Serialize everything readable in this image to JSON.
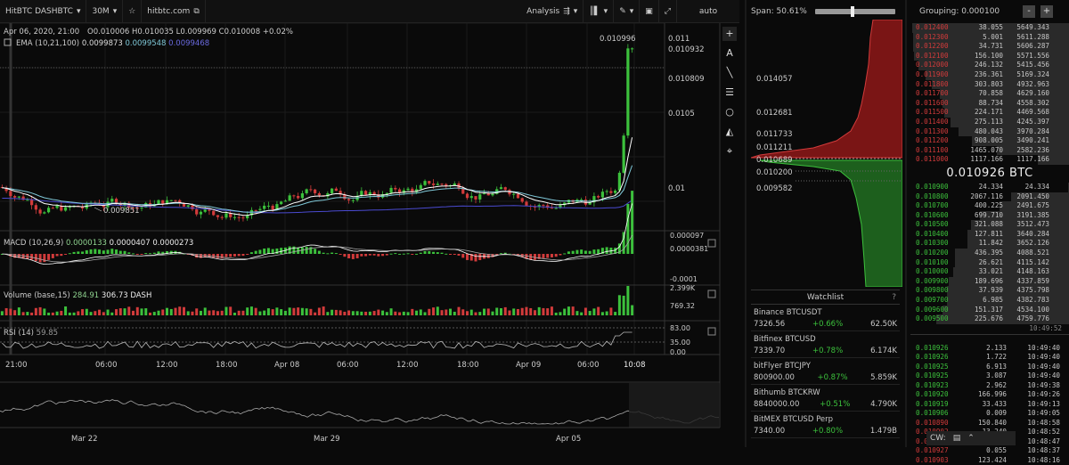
{
  "topbar": {
    "symbol": "HitBTC DASHBTC",
    "interval": "30M",
    "site": "hitbtc.com",
    "analysis": "Analysis",
    "auto": "auto"
  },
  "legend": {
    "date": "Apr 06, 2020, 21:00",
    "o": "0.010006",
    "h": "0.010035",
    "l": "0.009969",
    "c": "0.010008",
    "chg": "+0.02%",
    "ema_label": "EMA (10,21,100)",
    "ema1": "0.0099873",
    "ema2": "0.0099548",
    "ema3": "0.0099468"
  },
  "price_axis": {
    "labels": [
      "0.011",
      "0.010932",
      "0.010809",
      "0.0105",
      "0.01"
    ],
    "high_label": "0.010996",
    "low_label": "0.009851"
  },
  "macd": {
    "label": "MACD (10,26,9)",
    "v1": "0.0000133",
    "v2": "0.0000407",
    "v3": "0.0000273",
    "axis": [
      "0.000097",
      "0.0000381",
      "-0.0001"
    ]
  },
  "volume": {
    "label": "Volume (base,15)",
    "v1": "284.91",
    "v2": "306.73 DASH",
    "axis": [
      "2.399K",
      "769.32"
    ]
  },
  "rsi": {
    "label": "RSI (14)",
    "v": "59.85",
    "axis": [
      "83.00",
      "35.00",
      "0.00"
    ]
  },
  "time_axis": [
    "21:00",
    "06:00",
    "12:00",
    "18:00",
    "Apr 08",
    "06:00",
    "12:00",
    "18:00",
    "Apr 09",
    "06:00",
    "10:08"
  ],
  "overview_axis": [
    "Mar 22",
    "Mar 29",
    "Apr 05"
  ],
  "depth": {
    "span_label": "Span: 50.61%",
    "labels": [
      "0.014057",
      "0.012681",
      "0.011733",
      "0.011211",
      "0.010689",
      "0.010200",
      "0.009582"
    ]
  },
  "watchlist": {
    "title": "Watchlist",
    "help": "?",
    "items": [
      {
        "name": "Binance BTCUSDT",
        "price": "7326.56",
        "chg": "+0.66%",
        "vol": "62.50K"
      },
      {
        "name": "Bitfinex BTCUSD",
        "price": "7339.70",
        "chg": "+0.78%",
        "vol": "6.174K"
      },
      {
        "name": "bitFlyer BTCJPY",
        "price": "800900.00",
        "chg": "+0.87%",
        "vol": "5.859K"
      },
      {
        "name": "Bithumb BTCKRW",
        "price": "8840000.00",
        "chg": "+0.51%",
        "vol": "4.790K"
      },
      {
        "name": "BitMEX BTCUSD Perp",
        "price": "7340.00",
        "chg": "+0.80%",
        "vol": "1.479B"
      }
    ]
  },
  "orderbook": {
    "grouping": "Grouping: 0.000100",
    "minus": "-",
    "plus": "+",
    "spread": "0.010926 BTC",
    "asks": [
      [
        "0.012400",
        "38.055",
        "5649.343"
      ],
      [
        "0.012300",
        "5.001",
        "5611.288"
      ],
      [
        "0.012200",
        "34.731",
        "5606.287"
      ],
      [
        "0.012100",
        "156.100",
        "5571.556"
      ],
      [
        "0.012000",
        "246.132",
        "5415.456"
      ],
      [
        "0.011900",
        "236.361",
        "5169.324"
      ],
      [
        "0.011800",
        "303.803",
        "4932.963"
      ],
      [
        "0.011700",
        "70.858",
        "4629.160"
      ],
      [
        "0.011600",
        "88.734",
        "4558.302"
      ],
      [
        "0.011500",
        "224.171",
        "4469.568"
      ],
      [
        "0.011400",
        "275.113",
        "4245.397"
      ],
      [
        "0.011300",
        "480.043",
        "3970.284"
      ],
      [
        "0.011200",
        "908.005",
        "3490.241"
      ],
      [
        "0.011100",
        "1465.070",
        "2582.236"
      ],
      [
        "0.011000",
        "1117.166",
        "1117.166"
      ]
    ],
    "bids": [
      [
        "0.010900",
        "24.334",
        "24.334"
      ],
      [
        "0.010800",
        "2067.116",
        "2091.450"
      ],
      [
        "0.010700",
        "400.225",
        "2491.675"
      ],
      [
        "0.010600",
        "699.710",
        "3191.385"
      ],
      [
        "0.010500",
        "321.088",
        "3512.473"
      ],
      [
        "0.010400",
        "127.811",
        "3640.284"
      ],
      [
        "0.010300",
        "11.842",
        "3652.126"
      ],
      [
        "0.010200",
        "436.395",
        "4088.521"
      ],
      [
        "0.010100",
        "26.621",
        "4115.142"
      ],
      [
        "0.010000",
        "33.021",
        "4148.163"
      ],
      [
        "0.009900",
        "189.696",
        "4337.859"
      ],
      [
        "0.009800",
        "37.939",
        "4375.798"
      ],
      [
        "0.009700",
        "6.985",
        "4382.783"
      ],
      [
        "0.009600",
        "151.317",
        "4534.100"
      ],
      [
        "0.009500",
        "225.676",
        "4759.776"
      ]
    ],
    "time_label": "10:49:52",
    "trades": [
      [
        "0.010926",
        "2.133",
        "10:49:40"
      ],
      [
        "0.010926",
        "1.722",
        "10:49:40"
      ],
      [
        "0.010925",
        "6.913",
        "10:49:40"
      ],
      [
        "0.010925",
        "3.087",
        "10:49:40"
      ],
      [
        "0.010923",
        "2.962",
        "10:49:38"
      ],
      [
        "0.010920",
        "166.996",
        "10:49:26"
      ],
      [
        "0.010919",
        "33.433",
        "10:49:13"
      ],
      [
        "0.010906",
        "0.009",
        "10:49:05"
      ],
      [
        "0.010890",
        "150.840",
        "10:48:58"
      ],
      [
        "0.010902",
        "13.240",
        "10:48:52"
      ],
      [
        "0.010904",
        "41.152",
        "10:48:47"
      ],
      [
        "0.010927",
        "0.055",
        "10:48:37"
      ],
      [
        "0.010903",
        "123.424",
        "10:48:16"
      ]
    ]
  },
  "chat": {
    "label": "CW: "
  },
  "colors": {
    "up": "#3cc13c",
    "down": "#d23b3b",
    "ema1": "#ffffff",
    "ema2": "#7fc8d8",
    "ema3": "#4a4ad0"
  }
}
